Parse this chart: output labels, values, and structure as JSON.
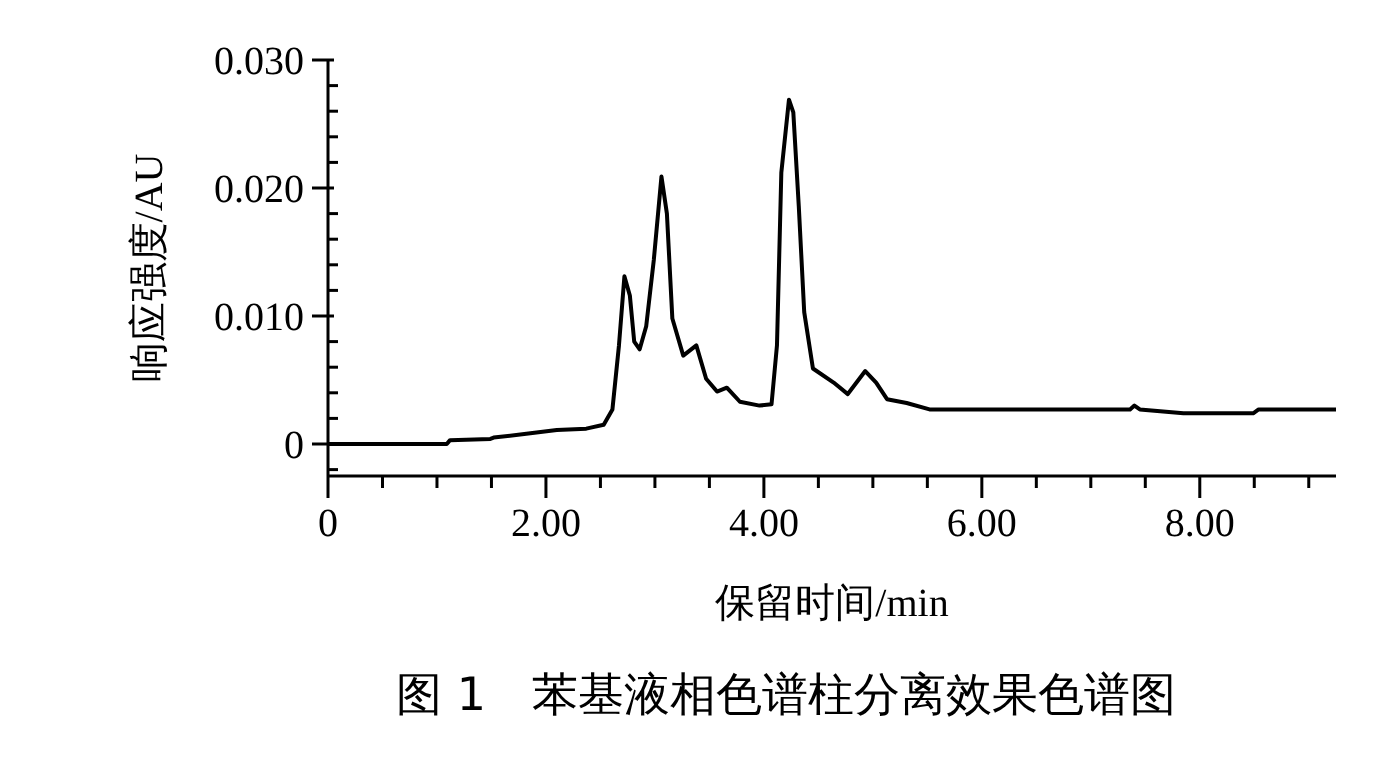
{
  "chart_data": {
    "type": "line",
    "title": "图 1　苯基液相色谱柱分离效果色谱图",
    "xlabel": "保留时间/min",
    "ylabel": "响应强度/AU",
    "xlim": [
      0,
      9.25
    ],
    "xticks": [
      0,
      {
        "value": 0.5,
        "label": null
      },
      {
        "value": 1,
        "label": null
      },
      {
        "value": 1.5,
        "label": null
      },
      {
        "value": 2,
        "label": "2.00"
      },
      {
        "value": 2.5,
        "label": null
      },
      {
        "value": 3,
        "label": null
      },
      {
        "value": 3.5,
        "label": null
      },
      {
        "value": 4,
        "label": "4.00"
      },
      {
        "value": 4.5,
        "label": null
      },
      {
        "value": 5,
        "label": null
      },
      {
        "value": 5.5,
        "label": null
      },
      {
        "value": 6,
        "label": "6.00"
      },
      {
        "value": 6.5,
        "label": null
      },
      {
        "value": 7,
        "label": null
      },
      {
        "value": 7.5,
        "label": null
      },
      {
        "value": 8,
        "label": "8.00"
      },
      {
        "value": 8.5,
        "label": null
      },
      {
        "value": 9,
        "label": null
      }
    ],
    "ylim": [
      -0.0025,
      0.03
    ],
    "yticks": [
      {
        "value": -0.002,
        "label": null
      },
      0,
      {
        "value": 0.002,
        "label": null
      },
      {
        "value": 0.004,
        "label": null
      },
      {
        "value": 0.006,
        "label": null
      },
      {
        "value": 0.008,
        "label": null
      },
      {
        "value": 0.01,
        "label": "0.010"
      },
      {
        "value": 0.012,
        "label": null
      },
      {
        "value": 0.014,
        "label": null
      },
      {
        "value": 0.016,
        "label": null
      },
      {
        "value": 0.018,
        "label": null
      },
      {
        "value": 0.02,
        "label": "0.020"
      },
      {
        "value": 0.022,
        "label": null
      },
      {
        "value": 0.024,
        "label": null
      },
      {
        "value": 0.026,
        "label": null
      },
      {
        "value": 0.028,
        "label": null
      },
      {
        "value": 0.03,
        "label": "0.030"
      }
    ],
    "marker": "none",
    "line_style": "solid",
    "series": [
      {
        "color": "#000000",
        "x": [
          0,
          1.09,
          1.12,
          1.49,
          1.52,
          1.82,
          2.1,
          2.37,
          2.53,
          2.61,
          2.67,
          2.72,
          2.77,
          2.81,
          2.86,
          2.92,
          2.99,
          3.06,
          3.11,
          3.16,
          3.26,
          3.38,
          3.47,
          3.57,
          3.66,
          3.78,
          3.96,
          4.07,
          4.12,
          4.16,
          4.23,
          4.27,
          4.32,
          4.37,
          4.45,
          4.64,
          4.77,
          4.93,
          5.03,
          5.13,
          5.31,
          5.52,
          7.36,
          7.4,
          7.45,
          7.85,
          8.49,
          8.54,
          9.25
        ],
        "values": [
          0,
          0,
          0.0003,
          0.0004,
          0.0005,
          0.0008,
          0.0011,
          0.0012,
          0.0015,
          0.0027,
          0.0077,
          0.0131,
          0.0116,
          0.008,
          0.0074,
          0.0092,
          0.0144,
          0.0209,
          0.018,
          0.0098,
          0.0069,
          0.0077,
          0.0051,
          0.0041,
          0.0044,
          0.0033,
          0.003,
          0.0031,
          0.0077,
          0.0212,
          0.0269,
          0.0259,
          0.0186,
          0.0103,
          0.0059,
          0.0048,
          0.0039,
          0.0057,
          0.0048,
          0.0035,
          0.0032,
          0.0027,
          0.0027,
          0.003,
          0.0027,
          0.0024,
          0.0024,
          0.0027,
          0.0027
        ]
      }
    ]
  }
}
